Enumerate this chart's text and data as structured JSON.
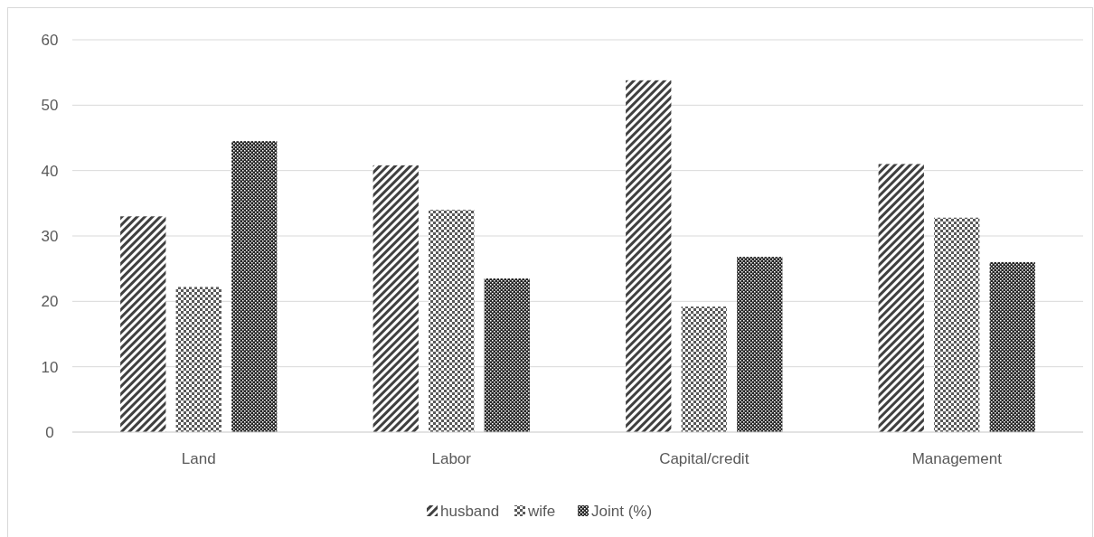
{
  "chart_data": {
    "type": "bar",
    "categories": [
      "Land",
      "Labor",
      "Capital/credit",
      "Management"
    ],
    "series": [
      {
        "name": "husband",
        "color": "#404040",
        "values": [
          33,
          40.8,
          53.8,
          41
        ]
      },
      {
        "name": "wife",
        "color": "#595959",
        "values": [
          22.2,
          34,
          19.2,
          32.8
        ]
      },
      {
        "name": "Joint (%)",
        "color": "#262626",
        "values": [
          44.5,
          23.5,
          26.8,
          26
        ]
      }
    ],
    "ylim": [
      0,
      60
    ],
    "yticks": [
      0,
      10,
      20,
      30,
      40,
      50,
      60
    ],
    "grid": "y",
    "legend": "bottom"
  }
}
